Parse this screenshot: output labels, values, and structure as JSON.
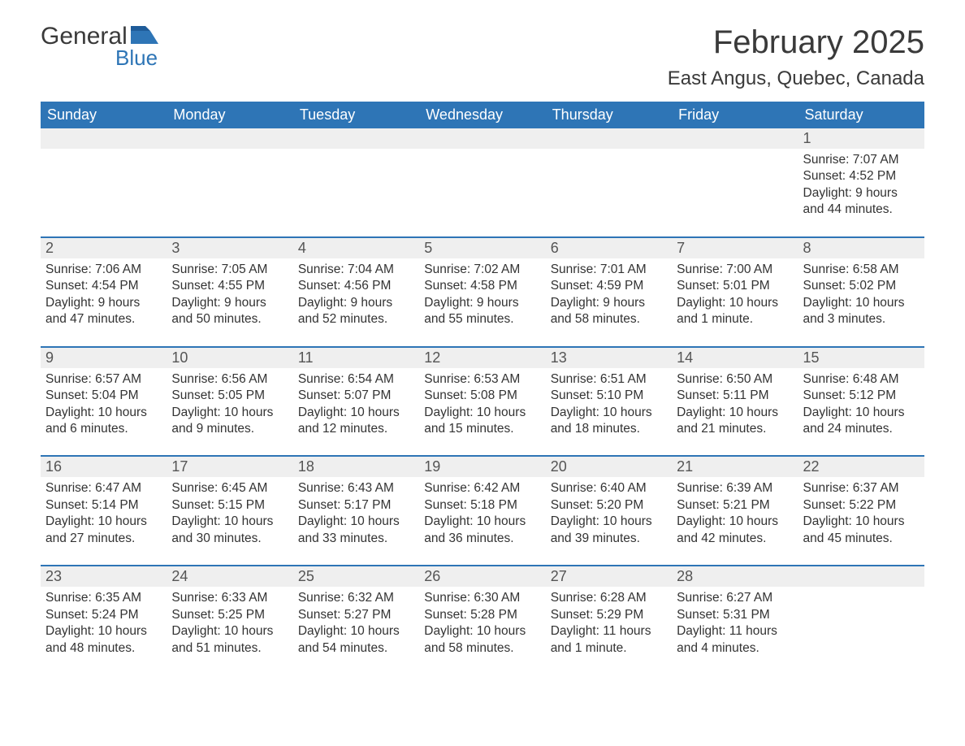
{
  "logo": {
    "word1": "General",
    "word2": "Blue"
  },
  "header": {
    "month_title": "February 2025",
    "location": "East Angus, Quebec, Canada"
  },
  "colors": {
    "header_bar": "#2e75b6",
    "week_divider": "#2e75b6",
    "daynum_bg": "#efefef",
    "text": "#333333",
    "logo_blue": "#2e75b6"
  },
  "calendar": {
    "days_of_week": [
      "Sunday",
      "Monday",
      "Tuesday",
      "Wednesday",
      "Thursday",
      "Friday",
      "Saturday"
    ],
    "weeks": [
      [
        null,
        null,
        null,
        null,
        null,
        null,
        {
          "n": "1",
          "sunrise": "Sunrise: 7:07 AM",
          "sunset": "Sunset: 4:52 PM",
          "daylight": "Daylight: 9 hours and 44 minutes."
        }
      ],
      [
        {
          "n": "2",
          "sunrise": "Sunrise: 7:06 AM",
          "sunset": "Sunset: 4:54 PM",
          "daylight": "Daylight: 9 hours and 47 minutes."
        },
        {
          "n": "3",
          "sunrise": "Sunrise: 7:05 AM",
          "sunset": "Sunset: 4:55 PM",
          "daylight": "Daylight: 9 hours and 50 minutes."
        },
        {
          "n": "4",
          "sunrise": "Sunrise: 7:04 AM",
          "sunset": "Sunset: 4:56 PM",
          "daylight": "Daylight: 9 hours and 52 minutes."
        },
        {
          "n": "5",
          "sunrise": "Sunrise: 7:02 AM",
          "sunset": "Sunset: 4:58 PM",
          "daylight": "Daylight: 9 hours and 55 minutes."
        },
        {
          "n": "6",
          "sunrise": "Sunrise: 7:01 AM",
          "sunset": "Sunset: 4:59 PM",
          "daylight": "Daylight: 9 hours and 58 minutes."
        },
        {
          "n": "7",
          "sunrise": "Sunrise: 7:00 AM",
          "sunset": "Sunset: 5:01 PM",
          "daylight": "Daylight: 10 hours and 1 minute."
        },
        {
          "n": "8",
          "sunrise": "Sunrise: 6:58 AM",
          "sunset": "Sunset: 5:02 PM",
          "daylight": "Daylight: 10 hours and 3 minutes."
        }
      ],
      [
        {
          "n": "9",
          "sunrise": "Sunrise: 6:57 AM",
          "sunset": "Sunset: 5:04 PM",
          "daylight": "Daylight: 10 hours and 6 minutes."
        },
        {
          "n": "10",
          "sunrise": "Sunrise: 6:56 AM",
          "sunset": "Sunset: 5:05 PM",
          "daylight": "Daylight: 10 hours and 9 minutes."
        },
        {
          "n": "11",
          "sunrise": "Sunrise: 6:54 AM",
          "sunset": "Sunset: 5:07 PM",
          "daylight": "Daylight: 10 hours and 12 minutes."
        },
        {
          "n": "12",
          "sunrise": "Sunrise: 6:53 AM",
          "sunset": "Sunset: 5:08 PM",
          "daylight": "Daylight: 10 hours and 15 minutes."
        },
        {
          "n": "13",
          "sunrise": "Sunrise: 6:51 AM",
          "sunset": "Sunset: 5:10 PM",
          "daylight": "Daylight: 10 hours and 18 minutes."
        },
        {
          "n": "14",
          "sunrise": "Sunrise: 6:50 AM",
          "sunset": "Sunset: 5:11 PM",
          "daylight": "Daylight: 10 hours and 21 minutes."
        },
        {
          "n": "15",
          "sunrise": "Sunrise: 6:48 AM",
          "sunset": "Sunset: 5:12 PM",
          "daylight": "Daylight: 10 hours and 24 minutes."
        }
      ],
      [
        {
          "n": "16",
          "sunrise": "Sunrise: 6:47 AM",
          "sunset": "Sunset: 5:14 PM",
          "daylight": "Daylight: 10 hours and 27 minutes."
        },
        {
          "n": "17",
          "sunrise": "Sunrise: 6:45 AM",
          "sunset": "Sunset: 5:15 PM",
          "daylight": "Daylight: 10 hours and 30 minutes."
        },
        {
          "n": "18",
          "sunrise": "Sunrise: 6:43 AM",
          "sunset": "Sunset: 5:17 PM",
          "daylight": "Daylight: 10 hours and 33 minutes."
        },
        {
          "n": "19",
          "sunrise": "Sunrise: 6:42 AM",
          "sunset": "Sunset: 5:18 PM",
          "daylight": "Daylight: 10 hours and 36 minutes."
        },
        {
          "n": "20",
          "sunrise": "Sunrise: 6:40 AM",
          "sunset": "Sunset: 5:20 PM",
          "daylight": "Daylight: 10 hours and 39 minutes."
        },
        {
          "n": "21",
          "sunrise": "Sunrise: 6:39 AM",
          "sunset": "Sunset: 5:21 PM",
          "daylight": "Daylight: 10 hours and 42 minutes."
        },
        {
          "n": "22",
          "sunrise": "Sunrise: 6:37 AM",
          "sunset": "Sunset: 5:22 PM",
          "daylight": "Daylight: 10 hours and 45 minutes."
        }
      ],
      [
        {
          "n": "23",
          "sunrise": "Sunrise: 6:35 AM",
          "sunset": "Sunset: 5:24 PM",
          "daylight": "Daylight: 10 hours and 48 minutes."
        },
        {
          "n": "24",
          "sunrise": "Sunrise: 6:33 AM",
          "sunset": "Sunset: 5:25 PM",
          "daylight": "Daylight: 10 hours and 51 minutes."
        },
        {
          "n": "25",
          "sunrise": "Sunrise: 6:32 AM",
          "sunset": "Sunset: 5:27 PM",
          "daylight": "Daylight: 10 hours and 54 minutes."
        },
        {
          "n": "26",
          "sunrise": "Sunrise: 6:30 AM",
          "sunset": "Sunset: 5:28 PM",
          "daylight": "Daylight: 10 hours and 58 minutes."
        },
        {
          "n": "27",
          "sunrise": "Sunrise: 6:28 AM",
          "sunset": "Sunset: 5:29 PM",
          "daylight": "Daylight: 11 hours and 1 minute."
        },
        {
          "n": "28",
          "sunrise": "Sunrise: 6:27 AM",
          "sunset": "Sunset: 5:31 PM",
          "daylight": "Daylight: 11 hours and 4 minutes."
        },
        null
      ]
    ]
  }
}
